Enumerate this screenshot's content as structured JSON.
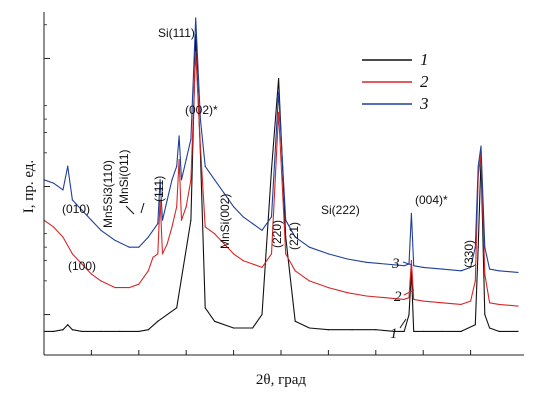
{
  "chart_data": {
    "type": "line",
    "xlabel": "2θ, град",
    "ylabel": "I, пр. ед.",
    "xlim": [
      0,
      100
    ],
    "ylim": [
      0,
      100
    ],
    "yscale": "log",
    "grid": false,
    "legend_placement": "top-right",
    "colors": {
      "1": "#111111",
      "2": "#d62728",
      "3": "#1f3f9a",
      "axis": "#222222"
    },
    "series": [
      {
        "name": "1",
        "color": "#111111",
        "x": [
          0,
          2,
          4,
          5,
          6,
          8,
          12,
          16,
          20,
          22,
          24,
          28,
          31,
          32,
          33,
          34,
          36,
          40,
          44,
          46,
          48,
          49.5,
          51,
          53,
          56,
          60,
          65,
          70,
          74,
          76,
          77,
          77.5,
          78,
          80,
          84,
          88,
          91,
          91.6,
          92.2,
          93,
          94,
          96,
          100
        ],
        "y": [
          7,
          7,
          7.5,
          9,
          7.5,
          7,
          7,
          7,
          7,
          7.5,
          10,
          14,
          40,
          95,
          60,
          14,
          10,
          8,
          8,
          12,
          55,
          82,
          35,
          10,
          8,
          7.5,
          7.5,
          7.5,
          7,
          7,
          12,
          25,
          7,
          7,
          7,
          7,
          9,
          32,
          58,
          12,
          8,
          7,
          7
        ]
      },
      {
        "name": "2",
        "color": "#d62728",
        "x": [
          0,
          2,
          4,
          6,
          8,
          10,
          12,
          15,
          18,
          20,
          22,
          23,
          24,
          24.5,
          25,
          26,
          27,
          28,
          28.5,
          29,
          30,
          31,
          32,
          33,
          34,
          36,
          38,
          40,
          42,
          44,
          46,
          48,
          49.5,
          51,
          53,
          56,
          60,
          64,
          68,
          72,
          76,
          77,
          77.5,
          78,
          80,
          84,
          88,
          90,
          91,
          91.6,
          92.2,
          93,
          94,
          96,
          100
        ],
        "y": [
          40,
          38,
          35,
          30,
          27,
          24,
          22,
          20,
          20,
          21,
          25,
          29,
          30,
          46,
          30,
          33,
          38,
          44,
          58,
          40,
          44,
          52,
          90,
          62,
          38,
          36,
          33,
          30,
          28,
          27,
          26,
          30,
          72,
          30,
          25,
          22,
          20,
          18.5,
          17.5,
          17,
          16.5,
          17,
          28,
          16.5,
          16,
          15.5,
          15,
          16,
          22,
          53,
          60,
          24,
          15.5,
          15,
          14.5
        ]
      },
      {
        "name": "3",
        "color": "#1f3f9a",
        "x": [
          0,
          2,
          4,
          5,
          6,
          8,
          10,
          12,
          15,
          18,
          20,
          22,
          24,
          24.5,
          25,
          26,
          27,
          28,
          28.5,
          29,
          30,
          31,
          32,
          33,
          34,
          36,
          38,
          40,
          42,
          44,
          46,
          48,
          49.5,
          51,
          53,
          56,
          60,
          64,
          68,
          72,
          76,
          77,
          77.5,
          78,
          80,
          84,
          88,
          90,
          91,
          91.6,
          92.2,
          93,
          94,
          96,
          100
        ],
        "y": [
          52,
          51,
          49,
          56,
          46,
          43,
          40,
          37,
          34,
          32,
          32,
          35,
          39,
          52,
          40,
          46,
          52,
          56,
          65,
          52,
          58,
          64,
          100,
          70,
          56,
          52,
          48,
          44,
          41,
          39,
          37,
          41,
          78,
          40,
          35,
          32,
          30,
          28.5,
          27.5,
          27,
          26.5,
          27,
          42,
          26.5,
          26,
          25.5,
          25,
          26,
          32,
          56,
          62,
          32,
          25.5,
          25,
          24.5
        ]
      }
    ],
    "legend": [
      "1",
      "2",
      "3"
    ],
    "curve_labels": [
      "1",
      "2",
      "3"
    ],
    "annotations": [
      "(010)",
      "(100)",
      "Mn5Si3(110)",
      "MnSi(011)",
      "Si(111)",
      "(111)",
      "(002)*",
      "MnSi(002)",
      "(220)",
      "(221)",
      "Si(222)",
      "(004)*",
      "(330)"
    ]
  }
}
